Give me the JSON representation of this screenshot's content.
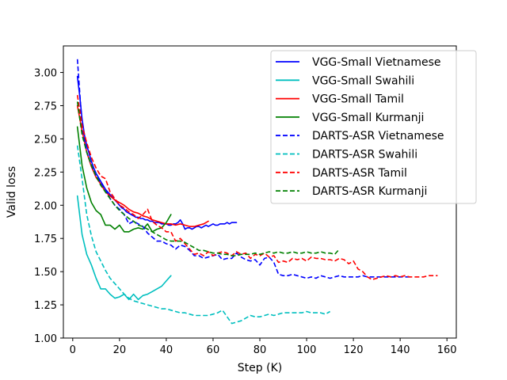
{
  "chart_data": {
    "type": "line",
    "title": "",
    "xlabel": "Step (K)",
    "ylabel": "Valid loss",
    "xlim": [
      -4,
      164
    ],
    "ylim": [
      1.0,
      3.2
    ],
    "xticks": [
      0,
      20,
      40,
      60,
      80,
      100,
      120,
      140,
      160
    ],
    "yticks": [
      1.0,
      1.25,
      1.5,
      1.75,
      2.0,
      2.25,
      2.5,
      2.75,
      3.0
    ],
    "ytick_labels": [
      "1.00",
      "1.25",
      "1.50",
      "1.75",
      "2.00",
      "2.25",
      "2.50",
      "2.75",
      "3.00"
    ],
    "grid": false,
    "legend_position": "top-right",
    "series": [
      {
        "name": "VGG-Small Vietnamese",
        "color": "#0000ff",
        "style": "solid",
        "x": [
          2,
          3,
          4,
          5,
          6,
          7,
          8,
          9,
          10,
          11,
          12,
          13,
          14,
          15,
          16,
          17,
          18,
          19,
          20,
          21,
          22,
          23,
          24,
          25,
          26,
          27,
          28,
          29,
          30,
          31,
          32,
          33,
          34,
          35,
          36,
          37,
          38,
          39,
          40,
          41,
          42,
          43,
          44,
          45,
          46,
          47,
          48,
          49,
          50,
          51,
          52,
          53,
          54,
          55,
          56,
          57,
          58,
          59,
          60,
          61,
          62,
          63,
          64,
          65,
          66,
          67,
          68,
          69,
          70
        ],
        "y": [
          2.97,
          2.82,
          2.65,
          2.53,
          2.45,
          2.39,
          2.33,
          2.28,
          2.24,
          2.21,
          2.18,
          2.15,
          2.12,
          2.1,
          2.08,
          2.06,
          2.04,
          2.02,
          2.0,
          1.98,
          1.97,
          1.95,
          1.94,
          1.93,
          1.92,
          1.91,
          1.91,
          1.9,
          1.9,
          1.89,
          1.89,
          1.88,
          1.88,
          1.87,
          1.87,
          1.87,
          1.86,
          1.86,
          1.86,
          1.85,
          1.85,
          1.86,
          1.86,
          1.87,
          1.89,
          1.86,
          1.82,
          1.83,
          1.83,
          1.82,
          1.83,
          1.84,
          1.84,
          1.83,
          1.84,
          1.85,
          1.84,
          1.85,
          1.86,
          1.85,
          1.85,
          1.86,
          1.86,
          1.86,
          1.87,
          1.86,
          1.87,
          1.87,
          1.87
        ]
      },
      {
        "name": "VGG-Small Swahili",
        "color": "#00bfbf",
        "style": "solid",
        "x": [
          2,
          4,
          6,
          8,
          10,
          12,
          14,
          16,
          18,
          20,
          22,
          24,
          26,
          28,
          30,
          32,
          34,
          36,
          38,
          40,
          42
        ],
        "y": [
          2.07,
          1.78,
          1.63,
          1.55,
          1.45,
          1.37,
          1.37,
          1.33,
          1.3,
          1.31,
          1.33,
          1.29,
          1.33,
          1.29,
          1.32,
          1.33,
          1.35,
          1.37,
          1.39,
          1.43,
          1.47
        ]
      },
      {
        "name": "VGG-Small Tamil",
        "color": "#ff0000",
        "style": "solid",
        "x": [
          2,
          4,
          6,
          8,
          10,
          12,
          14,
          16,
          18,
          20,
          22,
          24,
          26,
          28,
          30,
          32,
          34,
          36,
          38,
          40,
          42,
          44,
          46,
          48,
          50,
          52,
          54,
          56,
          58
        ],
        "y": [
          2.75,
          2.56,
          2.4,
          2.29,
          2.21,
          2.16,
          2.1,
          2.07,
          2.04,
          2.02,
          2.0,
          1.97,
          1.95,
          1.94,
          1.92,
          1.91,
          1.89,
          1.88,
          1.87,
          1.86,
          1.86,
          1.85,
          1.86,
          1.85,
          1.84,
          1.84,
          1.85,
          1.86,
          1.88
        ]
      },
      {
        "name": "VGG-Small Kurmanji",
        "color": "#008000",
        "style": "solid",
        "x": [
          2,
          4,
          6,
          8,
          10,
          12,
          14,
          16,
          18,
          20,
          22,
          24,
          26,
          28,
          30,
          32,
          34,
          36,
          38,
          40,
          42
        ],
        "y": [
          2.59,
          2.3,
          2.13,
          2.02,
          1.96,
          1.93,
          1.85,
          1.85,
          1.82,
          1.85,
          1.8,
          1.8,
          1.82,
          1.83,
          1.82,
          1.86,
          1.8,
          1.82,
          1.83,
          1.87,
          1.93
        ]
      },
      {
        "name": "DARTS-ASR Vietnamese",
        "color": "#0000ff",
        "style": "dashed",
        "x": [
          2,
          4,
          6,
          8,
          10,
          12,
          14,
          16,
          18,
          20,
          22,
          24,
          26,
          28,
          30,
          32,
          34,
          36,
          38,
          40,
          42,
          44,
          46,
          48,
          50,
          52,
          54,
          56,
          58,
          60,
          62,
          64,
          66,
          68,
          70,
          72,
          74,
          76,
          78,
          80,
          82,
          84,
          86,
          88,
          90,
          92,
          94,
          96,
          98,
          100,
          102,
          104,
          106,
          108,
          110,
          112,
          114,
          116,
          118,
          120,
          122,
          124,
          126,
          128,
          130,
          132,
          134,
          136,
          138,
          140,
          142,
          144
        ],
        "y": [
          3.1,
          2.6,
          2.4,
          2.3,
          2.22,
          2.17,
          2.12,
          2.05,
          2.0,
          1.97,
          1.93,
          1.86,
          1.88,
          1.86,
          1.84,
          1.79,
          1.76,
          1.73,
          1.73,
          1.71,
          1.7,
          1.67,
          1.7,
          1.69,
          1.66,
          1.62,
          1.62,
          1.6,
          1.61,
          1.62,
          1.63,
          1.59,
          1.6,
          1.6,
          1.64,
          1.61,
          1.59,
          1.58,
          1.59,
          1.55,
          1.6,
          1.61,
          1.57,
          1.48,
          1.47,
          1.47,
          1.48,
          1.47,
          1.46,
          1.45,
          1.46,
          1.45,
          1.47,
          1.46,
          1.45,
          1.46,
          1.47,
          1.46,
          1.46,
          1.46,
          1.46,
          1.47,
          1.46,
          1.46,
          1.46,
          1.46,
          1.46,
          1.46,
          1.46,
          1.46,
          1.46,
          1.46
        ]
      },
      {
        "name": "DARTS-ASR Swahili",
        "color": "#00bfbf",
        "style": "dashed",
        "x": [
          2,
          4,
          6,
          8,
          10,
          12,
          14,
          16,
          18,
          20,
          22,
          24,
          26,
          28,
          30,
          32,
          34,
          36,
          38,
          40,
          42,
          44,
          46,
          48,
          50,
          52,
          54,
          56,
          58,
          60,
          62,
          64,
          66,
          68,
          70,
          72,
          74,
          76,
          78,
          80,
          82,
          84,
          86,
          88,
          90,
          92,
          94,
          96,
          98,
          100,
          102,
          104,
          106,
          108,
          110
        ],
        "y": [
          2.45,
          2.2,
          1.93,
          1.77,
          1.65,
          1.58,
          1.51,
          1.45,
          1.41,
          1.37,
          1.33,
          1.3,
          1.28,
          1.27,
          1.26,
          1.25,
          1.24,
          1.23,
          1.22,
          1.22,
          1.21,
          1.2,
          1.19,
          1.19,
          1.18,
          1.17,
          1.17,
          1.17,
          1.17,
          1.18,
          1.19,
          1.21,
          1.16,
          1.11,
          1.12,
          1.13,
          1.15,
          1.17,
          1.16,
          1.16,
          1.17,
          1.18,
          1.17,
          1.18,
          1.19,
          1.19,
          1.19,
          1.19,
          1.19,
          1.2,
          1.19,
          1.19,
          1.19,
          1.18,
          1.2
        ]
      },
      {
        "name": "DARTS-ASR Tamil",
        "color": "#ff0000",
        "style": "dashed",
        "x": [
          2,
          4,
          6,
          8,
          10,
          12,
          14,
          16,
          18,
          20,
          22,
          24,
          26,
          28,
          30,
          32,
          34,
          36,
          38,
          40,
          42,
          44,
          46,
          48,
          50,
          52,
          54,
          56,
          58,
          60,
          62,
          64,
          66,
          68,
          70,
          72,
          74,
          76,
          78,
          80,
          82,
          84,
          86,
          88,
          90,
          92,
          94,
          96,
          98,
          100,
          102,
          104,
          106,
          108,
          110,
          112,
          114,
          116,
          118,
          120,
          122,
          124,
          126,
          128,
          130,
          132,
          134,
          136,
          138,
          140,
          142,
          144,
          146,
          148,
          150,
          152,
          154,
          156
        ],
        "y": [
          2.83,
          2.6,
          2.47,
          2.36,
          2.28,
          2.22,
          2.2,
          2.1,
          2.05,
          2.0,
          1.98,
          1.95,
          1.93,
          1.9,
          1.93,
          1.97,
          1.88,
          1.85,
          1.83,
          1.8,
          1.8,
          1.73,
          1.75,
          1.71,
          1.67,
          1.63,
          1.64,
          1.62,
          1.65,
          1.62,
          1.64,
          1.65,
          1.64,
          1.62,
          1.65,
          1.63,
          1.64,
          1.6,
          1.63,
          1.62,
          1.64,
          1.61,
          1.62,
          1.57,
          1.58,
          1.57,
          1.6,
          1.59,
          1.6,
          1.58,
          1.61,
          1.6,
          1.6,
          1.59,
          1.59,
          1.58,
          1.6,
          1.59,
          1.56,
          1.58,
          1.52,
          1.5,
          1.46,
          1.44,
          1.45,
          1.46,
          1.47,
          1.46,
          1.47,
          1.46,
          1.47,
          1.46,
          1.46,
          1.46,
          1.46,
          1.47,
          1.47,
          1.47
        ]
      },
      {
        "name": "DARTS-ASR Kurmanji",
        "color": "#008000",
        "style": "dashed",
        "x": [
          2,
          4,
          6,
          8,
          10,
          12,
          14,
          16,
          18,
          20,
          22,
          24,
          26,
          28,
          30,
          32,
          34,
          36,
          38,
          40,
          42,
          44,
          46,
          48,
          50,
          52,
          54,
          56,
          58,
          60,
          62,
          64,
          66,
          68,
          70,
          72,
          74,
          76,
          78,
          80,
          82,
          84,
          86,
          88,
          90,
          92,
          94,
          96,
          98,
          100,
          102,
          104,
          106,
          108,
          110,
          112,
          114
        ],
        "y": [
          2.78,
          2.53,
          2.4,
          2.3,
          2.22,
          2.15,
          2.1,
          2.05,
          2.0,
          1.96,
          1.93,
          1.9,
          1.88,
          1.85,
          1.84,
          1.82,
          1.8,
          1.78,
          1.76,
          1.74,
          1.73,
          1.73,
          1.73,
          1.72,
          1.7,
          1.68,
          1.66,
          1.66,
          1.65,
          1.64,
          1.64,
          1.63,
          1.63,
          1.62,
          1.62,
          1.63,
          1.63,
          1.63,
          1.64,
          1.63,
          1.64,
          1.65,
          1.64,
          1.65,
          1.64,
          1.64,
          1.65,
          1.64,
          1.64,
          1.65,
          1.64,
          1.64,
          1.65,
          1.64,
          1.64,
          1.63,
          1.67
        ]
      }
    ]
  }
}
